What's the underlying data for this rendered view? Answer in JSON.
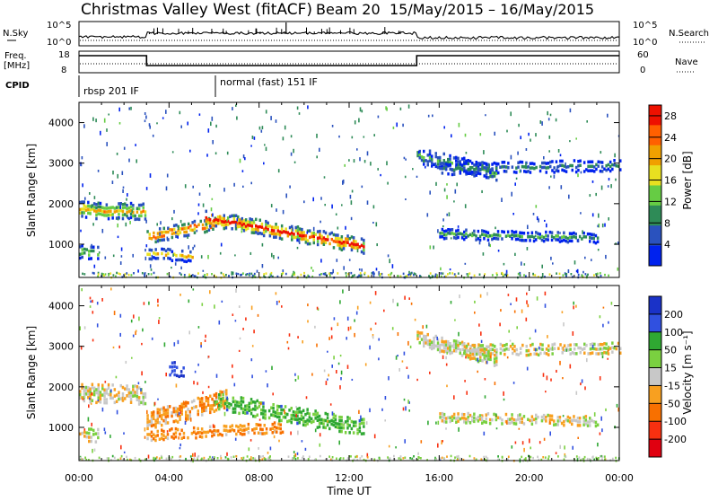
{
  "title": {
    "station": "Christmas Valley West (fitACF)",
    "beam": "Beam 20",
    "dates": "15/May/2015 – 16/May/2015"
  },
  "header": {
    "nsky_label": "N.Sky",
    "nsky_ticks": [
      "10^5",
      "10^0"
    ],
    "nsearch_label": "N.Search",
    "nsearch_ticks": [
      "10^5",
      "10^0"
    ],
    "freq_label_1": "Freq.",
    "freq_label_2": "[MHz]",
    "freq_ticks": [
      "18",
      "8"
    ],
    "nave_label": "Nave",
    "nave_ticks": [
      "60",
      "0"
    ],
    "cpid_label": "CPID",
    "cpid_modes": [
      {
        "label": "rbsp 201 IF",
        "start_hour": 0
      },
      {
        "label": "normal (fast) 151 IF",
        "start_hour": 6
      }
    ]
  },
  "chart_data": [
    {
      "type": "heatmap",
      "panel": "power",
      "ylabel": "Slant Range [km]",
      "xlabel": "",
      "x_range_hours": [
        0,
        24
      ],
      "ylim": [
        180,
        4500
      ],
      "y_ticks": [
        1000,
        2000,
        3000,
        4000
      ],
      "colorbar": {
        "label": "Power [dB]",
        "ticks": [
          4,
          8,
          12,
          16,
          20,
          24,
          28
        ],
        "range": [
          0,
          30
        ],
        "colors": [
          "#0022ee",
          "#2a52be",
          "#2e8b57",
          "#66cc44",
          "#e8e020",
          "#f0a000",
          "#ff6000",
          "#ee1100"
        ]
      },
      "features": [
        {
          "t0": 0.0,
          "t1": 2.9,
          "r_start": 1850,
          "r_end": 1800,
          "width": 350,
          "peak_db": 20
        },
        {
          "t0": 0.0,
          "t1": 0.8,
          "r_start": 820,
          "r_end": 800,
          "width": 280,
          "peak_db": 14
        },
        {
          "t0": 3.0,
          "t1": 6.0,
          "r_start": 1180,
          "r_end": 1500,
          "width": 280,
          "peak_db": 28
        },
        {
          "t0": 3.0,
          "t1": 5.0,
          "r_start": 780,
          "r_end": 700,
          "width": 220,
          "peak_db": 18
        },
        {
          "t0": 5.6,
          "t1": 12.6,
          "r_start": 1650,
          "r_end": 950,
          "width": 320,
          "peak_db": 28
        },
        {
          "t0": 15.0,
          "t1": 18.5,
          "r_start": 3200,
          "r_end": 2750,
          "width": 320,
          "peak_db": 10
        },
        {
          "t0": 16.0,
          "t1": 24.0,
          "r_start": 2850,
          "r_end": 2950,
          "width": 220,
          "peak_db": 8
        },
        {
          "t0": 16.0,
          "t1": 23.0,
          "r_start": 1250,
          "r_end": 1150,
          "width": 180,
          "peak_db": 10
        }
      ]
    },
    {
      "type": "heatmap",
      "panel": "velocity",
      "ylabel": "Slant Range [km]",
      "xlabel": "Time UT",
      "x_range_hours": [
        0,
        24
      ],
      "x_ticks": [
        "00:00",
        "04:00",
        "08:00",
        "12:00",
        "16:00",
        "20:00",
        "00:00"
      ],
      "ylim": [
        180,
        4500
      ],
      "y_ticks": [
        1000,
        2000,
        3000,
        4000
      ],
      "colorbar": {
        "label": "Velocity [m s⁻¹]",
        "ticks": [
          200,
          100,
          50,
          15,
          -15,
          -50,
          -100,
          -200
        ],
        "colors": [
          "#1a32c8",
          "#3050e0",
          "#2fa832",
          "#7ad040",
          "#c8c8c8",
          "#f8a020",
          "#f87000",
          "#f83010",
          "#e00010"
        ]
      },
      "features": [
        {
          "t0": 0.0,
          "t1": 2.9,
          "r_start": 1850,
          "r_end": 1800,
          "width": 400,
          "velocity": 0
        },
        {
          "t0": 0.0,
          "t1": 0.8,
          "r_start": 820,
          "r_end": 800,
          "width": 300,
          "velocity": 0
        },
        {
          "t0": 3.0,
          "t1": 6.5,
          "r_start": 1150,
          "r_end": 1700,
          "width": 400,
          "velocity": -40
        },
        {
          "t0": 3.0,
          "t1": 9.0,
          "r_start": 800,
          "r_end": 1000,
          "width": 200,
          "velocity": -50
        },
        {
          "t0": 6.0,
          "t1": 12.6,
          "r_start": 1650,
          "r_end": 1000,
          "width": 350,
          "velocity": 60
        },
        {
          "t0": 4.0,
          "t1": 4.6,
          "r_start": 2450,
          "r_end": 2400,
          "width": 300,
          "velocity": 180
        },
        {
          "t0": 15.0,
          "t1": 18.5,
          "r_start": 3200,
          "r_end": 2700,
          "width": 320,
          "velocity": 0
        },
        {
          "t0": 17.0,
          "t1": 24.0,
          "r_start": 2900,
          "r_end": 2950,
          "width": 220,
          "velocity": 0
        },
        {
          "t0": 16.0,
          "t1": 23.0,
          "r_start": 1250,
          "r_end": 1150,
          "width": 180,
          "velocity": 0
        }
      ]
    }
  ]
}
